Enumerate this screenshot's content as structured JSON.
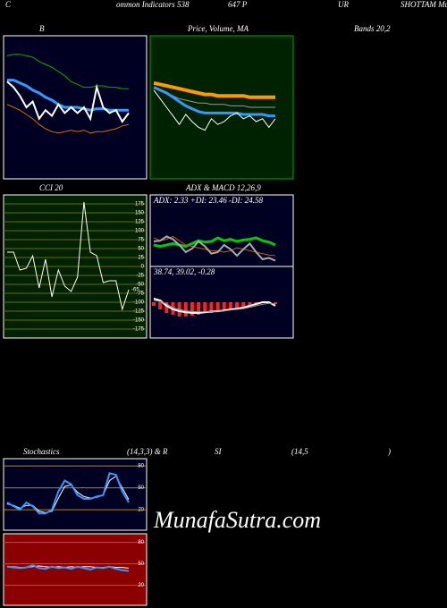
{
  "headings": [
    "C",
    "ommon  Indicators 538",
    "647 P",
    "UR",
    "SHOTTAM MunafaSutra.com",
    "B",
    "Price, Volume, MA",
    "Bands 20,2",
    "CCI 20",
    "ADX  & MACD 12,26,9",
    "Stochastics",
    "(14,3,3) & R",
    "SI",
    "(14,5",
    ")"
  ],
  "watermark": "MunafaSutra.com",
  "chart_data": [
    {
      "type": "line",
      "background": "#000022",
      "border": "#ffffff",
      "ylim": [
        0,
        100
      ],
      "series": [
        {
          "color": "#00b000",
          "values": [
            86,
            87,
            87,
            86,
            85,
            82,
            80,
            78,
            75,
            72,
            68,
            66,
            64,
            64,
            65,
            65,
            64,
            64,
            63,
            63
          ]
        },
        {
          "color": "#3399ff",
          "line_width": 3,
          "values": [
            69,
            69,
            67,
            65,
            62,
            60,
            57,
            55,
            52,
            50,
            50,
            50,
            49,
            48,
            49,
            49,
            48,
            48,
            48,
            48
          ]
        },
        {
          "color": "#ffffff",
          "line_width": 2,
          "values": [
            68,
            64,
            58,
            50,
            54,
            42,
            48,
            44,
            52,
            46,
            50,
            46,
            50,
            42,
            64,
            50,
            46,
            48,
            40,
            46
          ]
        },
        {
          "color": "#d07000",
          "values": [
            52,
            50,
            48,
            45,
            42,
            38,
            35,
            33,
            32,
            33,
            34,
            33,
            34,
            32,
            33,
            33,
            34,
            35,
            37,
            38
          ]
        }
      ]
    },
    {
      "type": "line",
      "background": "#002200",
      "border": "#00aa00",
      "ylim": [
        0,
        100
      ],
      "series": [
        {
          "color": "#999999",
          "values": [
            64,
            62,
            60,
            58,
            56,
            55,
            54,
            53,
            53,
            52,
            52,
            52,
            51,
            51,
            51,
            50,
            50,
            50,
            50,
            50
          ]
        },
        {
          "color": "#ff9900",
          "line_width": 4,
          "values": [
            67,
            66,
            65,
            64,
            63,
            62,
            61,
            60,
            59,
            59,
            58,
            58,
            58,
            58,
            58,
            57,
            57,
            57,
            57,
            57
          ]
        },
        {
          "color": "#3399ff",
          "line_width": 3,
          "values": [
            64,
            62,
            60,
            57,
            54,
            51,
            49,
            47,
            46,
            46,
            46,
            46,
            46,
            46,
            45,
            45,
            45,
            45,
            44,
            44
          ]
        },
        {
          "color": "#ffffff",
          "values": [
            62,
            56,
            50,
            44,
            38,
            45,
            40,
            36,
            34,
            42,
            38,
            40,
            44,
            46,
            42,
            44,
            40,
            42,
            36,
            42
          ]
        }
      ]
    },
    {
      "type": "line",
      "background": "#002200",
      "border": "#ffffff",
      "grid_color": "#6b6b00",
      "ylim": [
        -200,
        200
      ],
      "yticks": [
        175,
        150,
        125,
        100,
        75,
        50,
        25,
        0,
        -25,
        -50,
        -75,
        -100,
        -125,
        -150,
        -175
      ],
      "series": [
        {
          "color": "#ffffff",
          "values": [
            40,
            40,
            -10,
            -5,
            30,
            -60,
            20,
            -85,
            -10,
            -55,
            -70,
            -30,
            180,
            40,
            30,
            -45,
            -40,
            -40,
            -120,
            -65
          ],
          "value_labels": [
            null,
            null,
            null,
            null,
            null,
            null,
            null,
            null,
            null,
            null,
            null,
            null,
            null,
            null,
            null,
            null,
            null,
            null,
            null,
            "-65"
          ]
        }
      ]
    },
    {
      "type": "line",
      "background": "#000022",
      "border": "#ffffff",
      "ylim": [
        0,
        100
      ],
      "annotation": "ADX: 2.33  +DI: 23.46  -DI: 24.58",
      "series": [
        {
          "color": "#00cc00",
          "line_width": 3,
          "values": [
            30,
            28,
            30,
            32,
            30,
            28,
            32,
            36,
            34,
            35,
            40,
            36,
            38,
            35,
            37,
            38,
            40,
            36,
            34,
            30
          ]
        },
        {
          "color": "#c06000",
          "values": [
            40,
            36,
            38,
            42,
            36,
            30,
            28,
            26,
            24,
            22,
            22,
            20,
            22,
            26,
            24,
            22,
            20,
            18,
            16,
            15
          ]
        },
        {
          "color": "#aaaaaa",
          "line_width": 2,
          "values": [
            35,
            36,
            42,
            38,
            30,
            20,
            25,
            35,
            28,
            18,
            20,
            30,
            24,
            15,
            24,
            32,
            20,
            10,
            12,
            8
          ]
        }
      ]
    },
    {
      "type": "line",
      "background": "#000022",
      "border": "#ffffff",
      "ylim": [
        -10,
        10
      ],
      "annotation": "38.74,  39.02,  -0.28",
      "series": [
        {
          "style": "bar",
          "color": "#ff2222",
          "values": [
            -1,
            -2,
            -3,
            -3.5,
            -4,
            -4,
            -3.8,
            -3.5,
            -3,
            -3,
            -2.8,
            -2.5,
            -2.2,
            -2,
            -1.5,
            -1,
            -0.5,
            0,
            -0.3,
            -0.5
          ]
        },
        {
          "color": "#ffffff",
          "line_width": 2,
          "values": [
            1,
            0.5,
            -1,
            -2,
            -2.5,
            -2.8,
            -3,
            -3,
            -2.8,
            -2.6,
            -2.5,
            -2.3,
            -2,
            -1.8,
            -1.5,
            -1,
            -0.5,
            0,
            0,
            -1
          ]
        },
        {
          "color": "#999999",
          "values": [
            0.5,
            0.2,
            -0.5,
            -1.5,
            -2,
            -2.4,
            -2.6,
            -2.7,
            -2.7,
            -2.6,
            -2.5,
            -2.4,
            -2.2,
            -2,
            -1.8,
            -1.4,
            -1,
            -0.6,
            -0.3,
            -0.5
          ]
        }
      ]
    },
    {
      "type": "line",
      "background": "#000022",
      "border": "#ffffff",
      "grid_color": "#b8860b",
      "ylim": [
        -8,
        90
      ],
      "yticks": [
        80,
        50,
        20
      ],
      "series": [
        {
          "color": "#ffffff",
          "values": [
            28,
            26,
            22,
            26,
            26,
            18,
            16,
            18,
            36,
            52,
            54,
            44,
            38,
            36,
            37,
            40,
            60,
            66,
            50,
            34
          ]
        },
        {
          "color": "#3399ff",
          "line_width": 2,
          "values": [
            30,
            25,
            20,
            30,
            25,
            15,
            15,
            20,
            45,
            60,
            55,
            40,
            35,
            35,
            38,
            40,
            70,
            68,
            45,
            30
          ]
        }
      ]
    },
    {
      "type": "line",
      "background": "#8b0000",
      "border": "#ffffff",
      "grid_color": "#cc4444",
      "ylim": [
        -8,
        92
      ],
      "yticks": [
        80,
        50,
        20
      ],
      "series": [
        {
          "color": "#ffffff",
          "values": [
            46,
            46,
            45,
            45,
            46,
            47,
            46,
            45,
            46,
            45,
            46,
            45,
            46,
            46,
            45,
            45,
            46,
            45,
            45,
            44
          ]
        },
        {
          "color": "#3399ff",
          "line_width": 2,
          "values": [
            46,
            45,
            44,
            45,
            48,
            44,
            43,
            46,
            44,
            45,
            43,
            46,
            44,
            42,
            45,
            44,
            46,
            43,
            41,
            40
          ]
        }
      ]
    }
  ]
}
